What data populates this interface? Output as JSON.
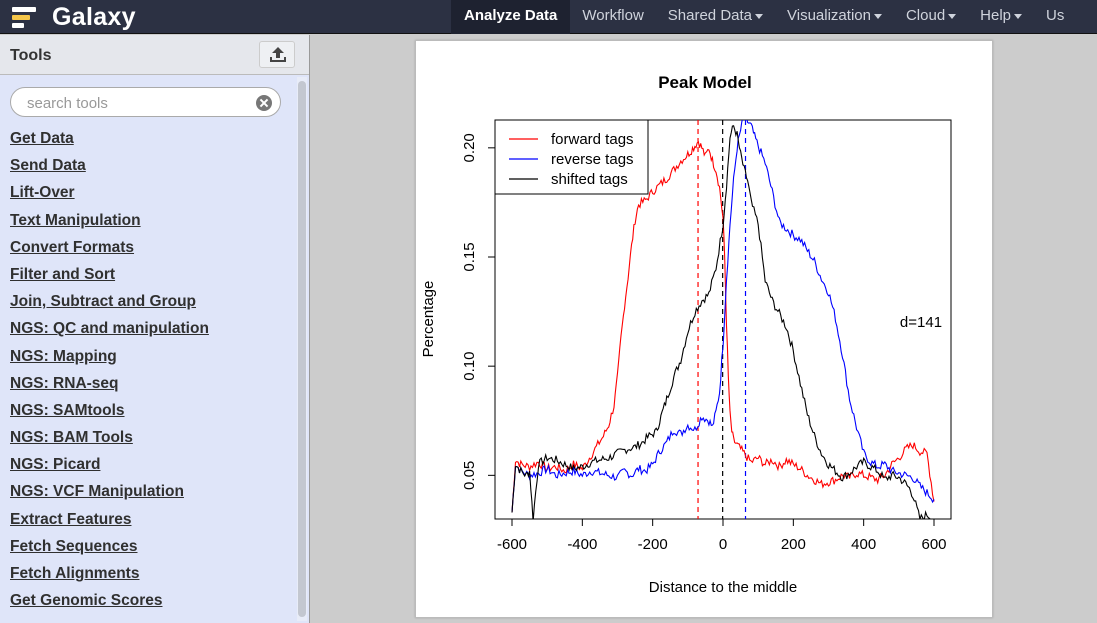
{
  "masthead": {
    "brand": "Galaxy",
    "nav": [
      {
        "label": "Analyze Data",
        "active": true,
        "dropdown": false
      },
      {
        "label": "Workflow",
        "active": false,
        "dropdown": false
      },
      {
        "label": "Shared Data",
        "active": false,
        "dropdown": true
      },
      {
        "label": "Visualization",
        "active": false,
        "dropdown": true
      },
      {
        "label": "Cloud",
        "active": false,
        "dropdown": true
      },
      {
        "label": "Help",
        "active": false,
        "dropdown": true
      },
      {
        "label": "Us",
        "active": false,
        "dropdown": false
      }
    ],
    "colors": {
      "background": "#2c3143",
      "active": "#1e2230"
    }
  },
  "tools": {
    "title": "Tools",
    "upload_icon": "upload-icon",
    "search": {
      "placeholder": "search tools",
      "value": ""
    },
    "sections": [
      "Get Data",
      "Send Data",
      "Lift-Over",
      "Text Manipulation",
      "Convert Formats",
      "Filter and Sort",
      "Join, Subtract and Group",
      "NGS: QC and manipulation",
      "NGS: Mapping",
      "NGS: RNA-seq",
      "NGS: SAMtools",
      "NGS: BAM Tools",
      "NGS: Picard",
      "NGS: VCF Manipulation",
      "Extract Features",
      "Fetch Sequences",
      "Fetch Alignments",
      "Get Genomic Scores"
    ]
  },
  "chart_data": {
    "type": "line",
    "title": "Peak Model",
    "xlabel": "Distance to the middle",
    "ylabel": "Percentage",
    "xlim": [
      -600,
      600
    ],
    "ylim": [
      0.03,
      0.21
    ],
    "xticks": [
      "-600",
      "-400",
      "-200",
      "0",
      "200",
      "400",
      "600"
    ],
    "xtick_values": [
      -600,
      -400,
      -200,
      0,
      200,
      400,
      600
    ],
    "yticks": [
      "0.05",
      "0.10",
      "0.15",
      "0.20"
    ],
    "ytick_values": [
      0.05,
      0.1,
      0.15,
      0.2
    ],
    "legend_position": "top-left",
    "annotation": "d=141",
    "series": [
      {
        "name": "forward tags",
        "color": "#ff0000",
        "x": [
          -600,
          -590,
          -575,
          -550,
          -525,
          -500,
          -475,
          -450,
          -425,
          -400,
          -380,
          -360,
          -340,
          -325,
          -310,
          -300,
          -290,
          -280,
          -270,
          -260,
          -250,
          -240,
          -220,
          -200,
          -180,
          -160,
          -140,
          -120,
          -100,
          -90,
          -80,
          -70,
          -60,
          -50,
          -40,
          -30,
          -20,
          -10,
          0,
          5,
          10,
          15,
          20,
          25,
          30,
          40,
          50,
          60,
          80,
          100,
          120,
          140,
          160,
          180,
          200,
          220,
          240,
          260,
          280,
          300,
          320,
          340,
          360,
          380,
          400,
          420,
          440,
          460,
          480,
          500,
          520,
          540,
          560,
          580,
          600
        ],
        "values": [
          0.033,
          0.057,
          0.055,
          0.054,
          0.056,
          0.053,
          0.054,
          0.052,
          0.055,
          0.053,
          0.058,
          0.063,
          0.068,
          0.073,
          0.082,
          0.095,
          0.113,
          0.128,
          0.141,
          0.155,
          0.167,
          0.174,
          0.176,
          0.18,
          0.183,
          0.186,
          0.19,
          0.194,
          0.197,
          0.199,
          0.201,
          0.203,
          0.2,
          0.196,
          0.2,
          0.194,
          0.19,
          0.182,
          0.168,
          0.148,
          0.12,
          0.095,
          0.078,
          0.07,
          0.066,
          0.064,
          0.062,
          0.06,
          0.056,
          0.058,
          0.055,
          0.057,
          0.054,
          0.057,
          0.055,
          0.053,
          0.05,
          0.048,
          0.046,
          0.047,
          0.048,
          0.05,
          0.049,
          0.051,
          0.05,
          0.049,
          0.048,
          0.05,
          0.055,
          0.058,
          0.062,
          0.064,
          0.061,
          0.06,
          0.038
        ]
      },
      {
        "name": "reverse tags",
        "color": "#0000ff",
        "x": [
          -600,
          -590,
          -575,
          -550,
          -525,
          -500,
          -475,
          -450,
          -425,
          -400,
          -375,
          -350,
          -325,
          -300,
          -280,
          -260,
          -240,
          -220,
          -200,
          -180,
          -160,
          -140,
          -120,
          -100,
          -80,
          -60,
          -40,
          -30,
          -20,
          -10,
          0,
          10,
          20,
          30,
          40,
          50,
          60,
          70,
          80,
          90,
          100,
          120,
          140,
          160,
          180,
          200,
          220,
          240,
          260,
          280,
          300,
          320,
          340,
          360,
          380,
          400,
          420,
          440,
          460,
          480,
          500,
          520,
          540,
          560,
          580,
          600
        ],
        "values": [
          0.033,
          0.055,
          0.052,
          0.05,
          0.051,
          0.053,
          0.05,
          0.051,
          0.052,
          0.05,
          0.052,
          0.051,
          0.05,
          0.049,
          0.052,
          0.05,
          0.053,
          0.052,
          0.055,
          0.061,
          0.065,
          0.071,
          0.069,
          0.073,
          0.071,
          0.077,
          0.075,
          0.072,
          0.079,
          0.088,
          0.11,
          0.14,
          0.165,
          0.185,
          0.2,
          0.208,
          0.215,
          0.212,
          0.21,
          0.205,
          0.201,
          0.193,
          0.18,
          0.166,
          0.163,
          0.16,
          0.158,
          0.153,
          0.148,
          0.14,
          0.134,
          0.122,
          0.105,
          0.085,
          0.072,
          0.06,
          0.056,
          0.054,
          0.055,
          0.052,
          0.051,
          0.05,
          0.049,
          0.045,
          0.042,
          0.039
        ]
      },
      {
        "name": "shifted tags",
        "color": "#000000",
        "x": [
          -600,
          -590,
          -575,
          -560,
          -550,
          -540,
          -525,
          -500,
          -475,
          -450,
          -425,
          -400,
          -375,
          -350,
          -325,
          -300,
          -275,
          -250,
          -230,
          -210,
          -190,
          -180,
          -170,
          -160,
          -140,
          -120,
          -100,
          -80,
          -60,
          -40,
          -20,
          0,
          10,
          20,
          30,
          40,
          50,
          60,
          70,
          80,
          100,
          120,
          140,
          160,
          180,
          200,
          220,
          240,
          260,
          280,
          300,
          320,
          340,
          360,
          380,
          400,
          420,
          440,
          460,
          480,
          500,
          520,
          530,
          540,
          560,
          580,
          600
        ],
        "values": [
          0.033,
          0.055,
          0.052,
          0.05,
          0.052,
          0.03,
          0.055,
          0.058,
          0.057,
          0.055,
          0.053,
          0.054,
          0.056,
          0.057,
          0.058,
          0.06,
          0.062,
          0.063,
          0.065,
          0.068,
          0.07,
          0.075,
          0.08,
          0.085,
          0.095,
          0.103,
          0.116,
          0.125,
          0.13,
          0.133,
          0.145,
          0.165,
          0.183,
          0.205,
          0.21,
          0.206,
          0.197,
          0.19,
          0.185,
          0.175,
          0.165,
          0.139,
          0.13,
          0.124,
          0.118,
          0.107,
          0.092,
          0.078,
          0.068,
          0.06,
          0.055,
          0.052,
          0.049,
          0.051,
          0.054,
          0.056,
          0.054,
          0.052,
          0.048,
          0.05,
          0.049,
          0.046,
          0.044,
          0.041,
          0.03,
          0.032,
          0.03
        ]
      }
    ],
    "reference_lines": [
      {
        "x": -71,
        "color": "#ff0000"
      },
      {
        "x": -1,
        "color": "#000000"
      },
      {
        "x": 64,
        "color": "#0000ff"
      }
    ]
  }
}
